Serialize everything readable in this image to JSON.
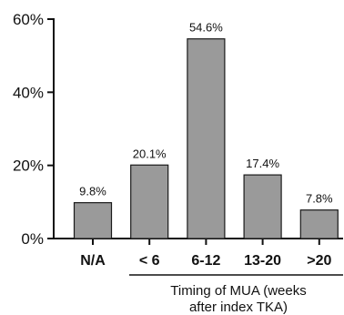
{
  "chart_data": {
    "type": "bar",
    "categories": [
      "N/A",
      "< 6",
      "6-12",
      "13-20",
      ">20"
    ],
    "values": [
      9.8,
      20.1,
      54.6,
      17.4,
      7.8
    ],
    "data_labels": [
      "9.8%",
      "20.1%",
      "54.6%",
      "17.4%",
      "7.8%"
    ],
    "ylim": [
      0,
      60
    ],
    "yticks": [
      0,
      20,
      40,
      60
    ],
    "ytick_labels": [
      "0%",
      "20%",
      "40%",
      "60%"
    ],
    "title": "",
    "ylabel": "",
    "xlabel_lines": [
      "Timing of MUA (weeks",
      "after index TKA)"
    ],
    "bar_color": "#9a9a9a",
    "bar_edge_color": "#1a1a1a",
    "grid": false,
    "legend": "none"
  }
}
